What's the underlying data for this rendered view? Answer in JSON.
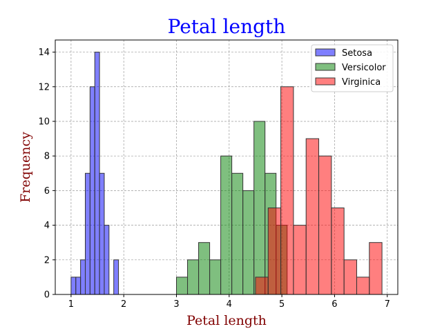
{
  "chart_data": {
    "type": "bar",
    "title": "Petal length",
    "xlabel": "Petal length",
    "ylabel": "Frequency",
    "xlim": [
      0.7,
      7.2
    ],
    "ylim": [
      0,
      14.7
    ],
    "xticks": [
      "1",
      "2",
      "3",
      "4",
      "5",
      "6",
      "7"
    ],
    "yticks": [
      "0",
      "2",
      "4",
      "6",
      "8",
      "10",
      "12",
      "14"
    ],
    "grid": true,
    "legend_position": "top-right",
    "colors": {
      "title": "#0000ff",
      "axis_label": "#800000",
      "grid": "#9a9a9a",
      "edge": "#333333"
    },
    "series": [
      {
        "name": "Setosa",
        "color": "#0000ff",
        "bin_width": 0.09,
        "bins": [
          {
            "x": 1.0,
            "count": 1
          },
          {
            "x": 1.09,
            "count": 1
          },
          {
            "x": 1.18,
            "count": 2
          },
          {
            "x": 1.27,
            "count": 7
          },
          {
            "x": 1.36,
            "count": 12
          },
          {
            "x": 1.45,
            "count": 14
          },
          {
            "x": 1.54,
            "count": 7
          },
          {
            "x": 1.63,
            "count": 4
          },
          {
            "x": 1.72,
            "count": 0
          },
          {
            "x": 1.81,
            "count": 2
          }
        ]
      },
      {
        "name": "Versicolor",
        "color": "#008000",
        "bin_width": 0.21,
        "bins": [
          {
            "x": 3.0,
            "count": 1
          },
          {
            "x": 3.21,
            "count": 2
          },
          {
            "x": 3.42,
            "count": 3
          },
          {
            "x": 3.63,
            "count": 2
          },
          {
            "x": 3.84,
            "count": 8
          },
          {
            "x": 4.05,
            "count": 7
          },
          {
            "x": 4.26,
            "count": 6
          },
          {
            "x": 4.47,
            "count": 10
          },
          {
            "x": 4.68,
            "count": 7
          },
          {
            "x": 4.89,
            "count": 4
          }
        ]
      },
      {
        "name": "Virginica",
        "color": "#ff0000",
        "bin_width": 0.24,
        "bins": [
          {
            "x": 4.5,
            "count": 1
          },
          {
            "x": 4.74,
            "count": 5
          },
          {
            "x": 4.98,
            "count": 12
          },
          {
            "x": 5.22,
            "count": 4
          },
          {
            "x": 5.46,
            "count": 9
          },
          {
            "x": 5.7,
            "count": 8
          },
          {
            "x": 5.94,
            "count": 5
          },
          {
            "x": 6.18,
            "count": 2
          },
          {
            "x": 6.42,
            "count": 1
          },
          {
            "x": 6.66,
            "count": 3
          }
        ]
      }
    ]
  }
}
